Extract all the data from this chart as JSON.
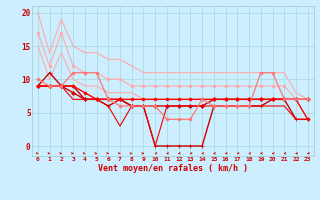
{
  "title": "",
  "xlabel": "Vent moyen/en rafales ( km/h )",
  "background_color": "#cceeff",
  "grid_color": "#aadddd",
  "xlim": [
    -0.5,
    23.5
  ],
  "ylim": [
    -1.5,
    21
  ],
  "yticks": [
    0,
    5,
    10,
    15,
    20
  ],
  "xticks": [
    0,
    1,
    2,
    3,
    4,
    5,
    6,
    7,
    8,
    9,
    10,
    11,
    12,
    13,
    14,
    15,
    16,
    17,
    18,
    19,
    20,
    21,
    22,
    23
  ],
  "series": [
    {
      "x": [
        0,
        1,
        2,
        3,
        4,
        5,
        6,
        7,
        8,
        9,
        10,
        11,
        12,
        13,
        14,
        15,
        16,
        17,
        18,
        19,
        20,
        21,
        22,
        23
      ],
      "y": [
        20,
        14,
        19,
        15,
        14,
        14,
        13,
        13,
        12,
        11,
        11,
        11,
        11,
        11,
        11,
        11,
        11,
        11,
        11,
        11,
        11,
        11,
        8,
        7
      ],
      "color": "#ffaaaa",
      "marker": null,
      "linewidth": 0.8,
      "zorder": 2
    },
    {
      "x": [
        0,
        1,
        2,
        3,
        4,
        5,
        6,
        7,
        8,
        9,
        10,
        11,
        12,
        13,
        14,
        15,
        16,
        17,
        18,
        19,
        20,
        21,
        22,
        23
      ],
      "y": [
        17,
        12,
        17,
        12,
        11,
        11,
        10,
        10,
        9,
        9,
        9,
        9,
        9,
        9,
        9,
        9,
        9,
        9,
        9,
        9,
        9,
        9,
        7,
        7
      ],
      "color": "#ffaaaa",
      "marker": "o",
      "linewidth": 0.8,
      "markersize": 2,
      "zorder": 2
    },
    {
      "x": [
        0,
        1,
        2,
        3,
        4,
        5,
        6,
        7,
        8,
        9,
        10,
        11,
        12,
        13,
        14,
        15,
        16,
        17,
        18,
        19,
        20,
        21,
        22,
        23
      ],
      "y": [
        15,
        10,
        14,
        10,
        9,
        9,
        8,
        8,
        8,
        7,
        7,
        7,
        7,
        7,
        7,
        7,
        7,
        7,
        7,
        7,
        7,
        7,
        7,
        7
      ],
      "color": "#ffaaaa",
      "marker": null,
      "linewidth": 0.8,
      "zorder": 2
    },
    {
      "x": [
        0,
        1,
        2,
        3,
        4,
        5,
        6,
        7,
        8,
        9,
        10,
        11,
        12,
        13,
        14,
        15,
        16,
        17,
        18,
        19,
        20,
        21,
        22,
        23
      ],
      "y": [
        9,
        9,
        9,
        8,
        7,
        7,
        7,
        7,
        6,
        6,
        6,
        6,
        6,
        6,
        6,
        7,
        7,
        7,
        7,
        7,
        7,
        7,
        7,
        7
      ],
      "color": "#cc0000",
      "marker": "D",
      "linewidth": 1.0,
      "markersize": 2,
      "zorder": 3
    },
    {
      "x": [
        0,
        1,
        2,
        3,
        4,
        5,
        6,
        7,
        8,
        9,
        10,
        11,
        12,
        13,
        14,
        15,
        16,
        17,
        18,
        19,
        20,
        21,
        22,
        23
      ],
      "y": [
        9,
        11,
        9,
        9,
        7,
        7,
        6,
        7,
        6,
        6,
        0,
        0,
        0,
        0,
        0,
        6,
        6,
        6,
        6,
        6,
        7,
        7,
        4,
        4
      ],
      "color": "#cc0000",
      "marker": "+",
      "linewidth": 1.0,
      "markersize": 3,
      "zorder": 3
    },
    {
      "x": [
        0,
        1,
        2,
        3,
        4,
        5,
        6,
        7,
        8,
        9,
        10,
        11,
        12,
        13,
        14,
        15,
        16,
        17,
        18,
        19,
        20,
        21,
        22,
        23
      ],
      "y": [
        9,
        9,
        9,
        7,
        7,
        7,
        6,
        3,
        6,
        6,
        0,
        6,
        6,
        6,
        6,
        6,
        6,
        6,
        6,
        6,
        6,
        6,
        4,
        4
      ],
      "color": "#ee0000",
      "marker": null,
      "linewidth": 0.8,
      "zorder": 3
    },
    {
      "x": [
        0,
        1,
        2,
        3,
        4,
        5,
        6,
        7,
        8,
        9,
        10,
        11,
        12,
        13,
        14,
        15,
        16,
        17,
        18,
        19,
        20,
        21,
        22,
        23
      ],
      "y": [
        9,
        9,
        9,
        9,
        8,
        7,
        7,
        7,
        7,
        7,
        7,
        7,
        7,
        7,
        7,
        7,
        7,
        7,
        7,
        7,
        7,
        7,
        7,
        4
      ],
      "color": "#ff0000",
      "marker": "o",
      "linewidth": 1.0,
      "markersize": 2,
      "zorder": 3
    },
    {
      "x": [
        0,
        1,
        2,
        3,
        4,
        5,
        6,
        7,
        8,
        9,
        10,
        11,
        12,
        13,
        14,
        15,
        16,
        17,
        18,
        19,
        20,
        21,
        22,
        23
      ],
      "y": [
        10,
        9,
        9,
        11,
        11,
        11,
        7,
        6,
        6,
        6,
        6,
        4,
        4,
        4,
        7,
        6,
        6,
        6,
        6,
        11,
        11,
        7,
        7,
        7
      ],
      "color": "#ff7777",
      "marker": "o",
      "linewidth": 0.9,
      "markersize": 2,
      "zorder": 3
    }
  ],
  "arrow_directions": [
    1,
    1,
    1,
    1,
    1,
    1,
    1,
    1,
    1,
    1,
    -1,
    -1,
    -1,
    -1,
    -1,
    -1,
    -1,
    -1,
    -1,
    -1,
    -1,
    -1,
    -1,
    -1
  ],
  "arrow_color": "#cc0000"
}
